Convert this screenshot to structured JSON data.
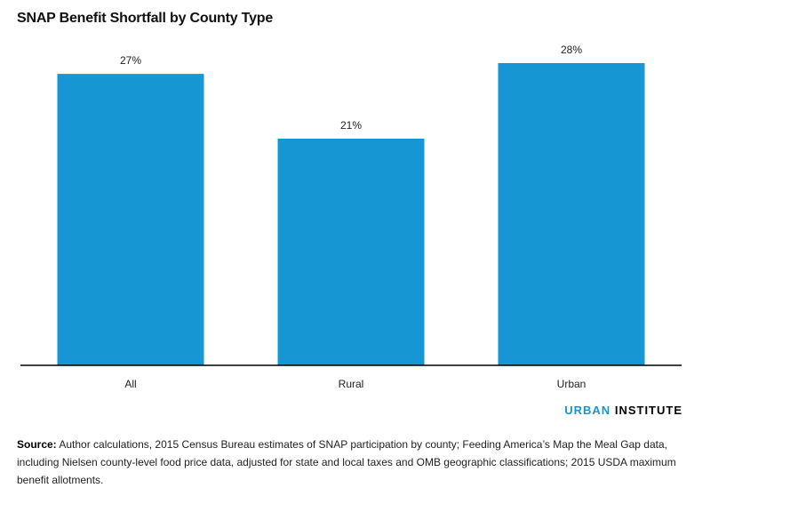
{
  "chart_data": {
    "type": "bar",
    "title": "SNAP Benefit Shortfall by County Type",
    "categories": [
      "All",
      "Rural",
      "Urban"
    ],
    "values": [
      27,
      21,
      28
    ],
    "value_labels": [
      "27%",
      "21%",
      "28%"
    ],
    "unit": "%",
    "ylim": [
      0,
      28
    ],
    "grid": false,
    "legend": "none",
    "bar_color": "#1696d2",
    "axis_color": "#000000"
  },
  "branding": {
    "part1": "URBAN",
    "part2": "INSTITUTE",
    "color_part1": "#1696d2"
  },
  "source": {
    "label": "Source:",
    "text": "Author calculations, 2015 Census Bureau estimates of SNAP participation by county; Feeding America’s Map the Meal Gap data, including Nielsen county-level food price data, adjusted for state and local taxes and OMB geographic classifications; 2015 USDA maximum benefit allotments."
  }
}
